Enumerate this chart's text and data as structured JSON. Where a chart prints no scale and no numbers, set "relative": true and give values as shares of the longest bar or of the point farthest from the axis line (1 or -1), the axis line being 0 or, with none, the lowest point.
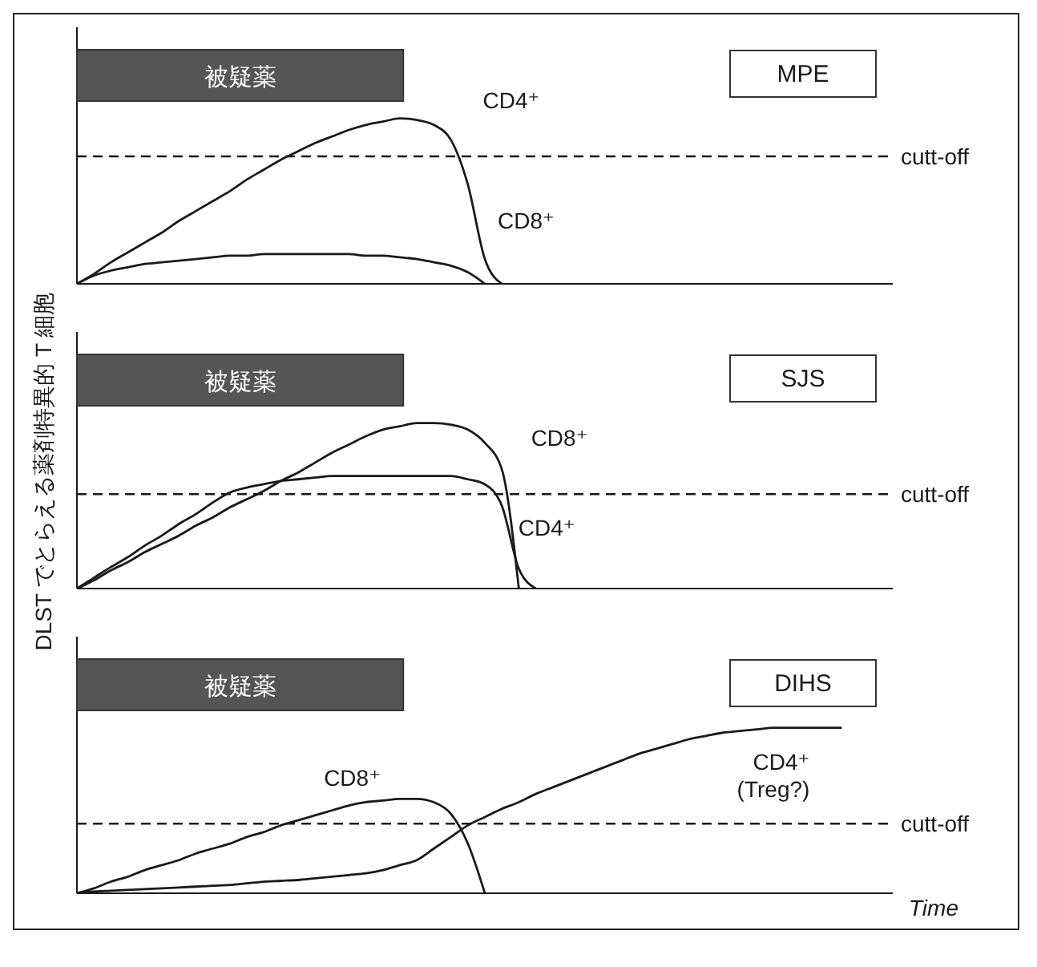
{
  "chart_data": [
    {
      "type": "line",
      "relative": true,
      "title": "MPE",
      "ylabel": "DLST でとらえる薬剤特異的 T 細胞",
      "categories": [
        null,
        null,
        null,
        null,
        null,
        null,
        null,
        null,
        null,
        null,
        null,
        null,
        null,
        null,
        null,
        null,
        null,
        null,
        null,
        null,
        null,
        null,
        null,
        null,
        null,
        null,
        null,
        null,
        null,
        null,
        null,
        null,
        null,
        null,
        null,
        null,
        null,
        null,
        null,
        null,
        null,
        null,
        null,
        null,
        null,
        null,
        null,
        null,
        null
      ],
      "series": [
        {
          "name": "CD4⁺",
          "color": "#1a1a1a",
          "values": [
            0,
            0.06,
            0.13,
            0.19,
            0.25,
            0.31,
            0.38,
            0.44,
            0.5,
            0.56,
            0.63,
            0.69,
            0.75,
            0.8,
            0.85,
            0.89,
            0.93,
            0.96,
            0.98,
            1,
            0.99,
            0.96,
            0.87,
            0.6,
            0.15,
            0,
            null,
            null,
            null,
            null,
            null,
            null,
            null,
            null,
            null,
            null,
            null,
            null,
            null,
            null,
            null,
            null,
            null,
            null,
            null,
            null,
            null,
            null,
            null
          ]
        },
        {
          "name": "CD8⁺",
          "color": "#1a1a1a",
          "values": [
            0,
            0.05,
            0.08,
            0.1,
            0.12,
            0.13,
            0.14,
            0.15,
            0.16,
            0.17,
            0.17,
            0.18,
            0.18,
            0.18,
            0.18,
            0.18,
            0.18,
            0.17,
            0.17,
            0.16,
            0.15,
            0.13,
            0.11,
            0.07,
            0,
            null,
            null,
            null,
            null,
            null,
            null,
            null,
            null,
            null,
            null,
            null,
            null,
            null,
            null,
            null,
            null,
            null,
            null,
            null,
            null,
            null,
            null,
            null,
            null
          ]
        }
      ],
      "ref_lines": [
        {
          "axis": "y",
          "value": 0.77,
          "label": "cutt-off",
          "line_style": "dashed",
          "color": "#1a1a1a"
        }
      ],
      "annotations": [
        "被疑薬"
      ],
      "legend": false
    },
    {
      "type": "line",
      "relative": true,
      "title": "SJS",
      "categories": [
        null,
        null,
        null,
        null,
        null,
        null,
        null,
        null,
        null,
        null,
        null,
        null,
        null,
        null,
        null,
        null,
        null,
        null,
        null,
        null,
        null,
        null,
        null,
        null,
        null,
        null,
        null,
        null,
        null,
        null,
        null,
        null,
        null,
        null,
        null,
        null,
        null,
        null,
        null,
        null,
        null,
        null,
        null,
        null,
        null,
        null,
        null,
        null,
        null
      ],
      "series": [
        {
          "name": "CD8⁺",
          "color": "#1a1a1a",
          "values": [
            0,
            0.05,
            0.11,
            0.16,
            0.22,
            0.27,
            0.32,
            0.38,
            0.43,
            0.49,
            0.54,
            0.59,
            0.65,
            0.7,
            0.76,
            0.82,
            0.87,
            0.92,
            0.96,
            0.98,
            1,
            1,
            0.99,
            0.96,
            0.88,
            0.72,
            0,
            null,
            null,
            null,
            null,
            null,
            null,
            null,
            null,
            null,
            null,
            null,
            null,
            null,
            null,
            null,
            null,
            null,
            null,
            null,
            null,
            null,
            null
          ]
        },
        {
          "name": "CD4⁺",
          "color": "#1a1a1a",
          "values": [
            0,
            0.065,
            0.13,
            0.19,
            0.26,
            0.32,
            0.39,
            0.45,
            0.52,
            0.58,
            0.61,
            0.63,
            0.65,
            0.66,
            0.67,
            0.68,
            0.68,
            0.68,
            0.68,
            0.68,
            0.68,
            0.68,
            0.68,
            0.66,
            0.63,
            0.5,
            0.12,
            0,
            null,
            null,
            null,
            null,
            null,
            null,
            null,
            null,
            null,
            null,
            null,
            null,
            null,
            null,
            null,
            null,
            null,
            null,
            null,
            null,
            null
          ]
        }
      ],
      "ref_lines": [
        {
          "axis": "y",
          "value": 0.57,
          "label": "cutt-off",
          "line_style": "dashed",
          "color": "#1a1a1a"
        }
      ],
      "annotations": [
        "被疑薬"
      ],
      "legend": false
    },
    {
      "type": "line",
      "relative": true,
      "title": "DIHS",
      "xlabel": "Time",
      "categories": [
        null,
        null,
        null,
        null,
        null,
        null,
        null,
        null,
        null,
        null,
        null,
        null,
        null,
        null,
        null,
        null,
        null,
        null,
        null,
        null,
        null,
        null,
        null,
        null,
        null,
        null,
        null,
        null,
        null,
        null,
        null,
        null,
        null,
        null,
        null,
        null,
        null,
        null,
        null,
        null,
        null,
        null,
        null,
        null,
        null,
        null,
        null,
        null,
        null
      ],
      "series": [
        {
          "name": "CD8⁺",
          "color": "#1a1a1a",
          "values": [
            0,
            0.03,
            0.07,
            0.1,
            0.14,
            0.17,
            0.2,
            0.24,
            0.27,
            0.3,
            0.34,
            0.37,
            0.41,
            0.44,
            0.47,
            0.5,
            0.53,
            0.55,
            0.56,
            0.57,
            0.57,
            0.55,
            0.48,
            0.3,
            0,
            null,
            null,
            null,
            null,
            null,
            null,
            null,
            null,
            null,
            null,
            null,
            null,
            null,
            null,
            null,
            null,
            null,
            null,
            null,
            null,
            null,
            null,
            null,
            null
          ]
        },
        {
          "name": "CD4⁺ (Treg?)",
          "color": "#1a1a1a",
          "values": [
            0,
            0.01,
            0.015,
            0.02,
            0.025,
            0.03,
            0.035,
            0.04,
            0.045,
            0.05,
            0.06,
            0.07,
            0.075,
            0.08,
            0.09,
            0.1,
            0.11,
            0.12,
            0.14,
            0.17,
            0.2,
            0.27,
            0.34,
            0.41,
            0.46,
            0.51,
            0.55,
            0.6,
            0.64,
            0.68,
            0.72,
            0.76,
            0.8,
            0.84,
            0.87,
            0.9,
            0.93,
            0.95,
            0.97,
            0.98,
            0.99,
            1,
            1,
            1,
            1,
            1,
            null,
            null,
            null
          ]
        }
      ],
      "ref_lines": [
        {
          "axis": "y",
          "value": 0.42,
          "label": "cutt-off",
          "line_style": "dashed",
          "color": "#1a1a1a"
        }
      ],
      "annotations": [
        "被疑薬"
      ],
      "legend": false
    }
  ]
}
